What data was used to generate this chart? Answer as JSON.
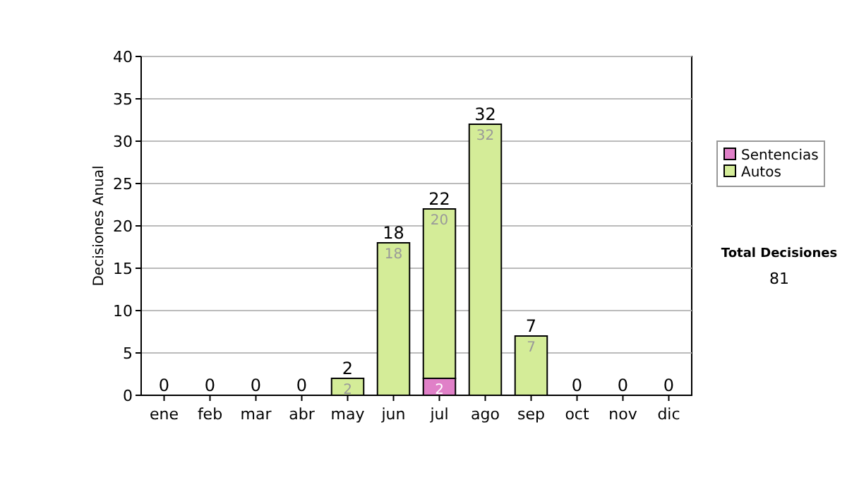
{
  "chart_data": {
    "type": "bar",
    "ylabel": "Decisiones Anual",
    "categories": [
      "ene",
      "feb",
      "mar",
      "abr",
      "may",
      "jun",
      "jul",
      "ago",
      "sep",
      "oct",
      "nov",
      "dic"
    ],
    "stacked": true,
    "series": [
      {
        "name": "Sentencias",
        "color": "#e080c8",
        "values": [
          0,
          0,
          0,
          0,
          0,
          0,
          2,
          0,
          0,
          0,
          0,
          0
        ],
        "value_labels": [
          null,
          null,
          null,
          null,
          null,
          null,
          "2",
          null,
          null,
          null,
          null,
          null
        ]
      },
      {
        "name": "Autos",
        "color": "#d4ec98",
        "values": [
          0,
          0,
          0,
          0,
          2,
          18,
          20,
          32,
          7,
          0,
          0,
          0
        ],
        "value_labels": [
          null,
          null,
          null,
          null,
          "2",
          "18",
          "20",
          "32",
          "7",
          null,
          null,
          null
        ]
      }
    ],
    "totals": [
      "0",
      "0",
      "0",
      "0",
      "2",
      "18",
      "22",
      "32",
      "7",
      "0",
      "0",
      "0"
    ],
    "ylim": [
      0,
      40
    ],
    "yticks": [
      0,
      5,
      10,
      15,
      20,
      25,
      30,
      35,
      40
    ],
    "grid": "y",
    "legend": "right",
    "annotations": [
      "Total Decisiones",
      "81"
    ]
  }
}
